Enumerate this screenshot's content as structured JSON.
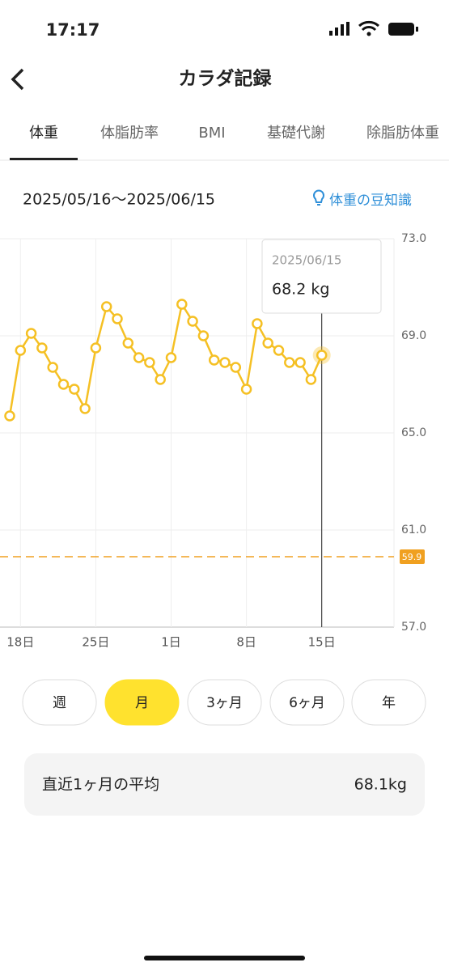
{
  "status_bar": {
    "time": "17:17"
  },
  "header": {
    "title": "カラダ記録"
  },
  "tabs": [
    "体重",
    "体脂肪率",
    "BMI",
    "基礎代謝",
    "除脂肪体重"
  ],
  "date_range": "2025/05/16〜2025/06/15",
  "tip_link": "体重の豆知識",
  "chart_data": {
    "type": "line",
    "categories": [
      null,
      "18日",
      null,
      null,
      null,
      null,
      null,
      null,
      "25日",
      null,
      null,
      null,
      null,
      null,
      null,
      "1日",
      null,
      null,
      null,
      null,
      null,
      null,
      "8日",
      null,
      null,
      null,
      null,
      null,
      null,
      "15日"
    ],
    "series": [
      {
        "name": "体重",
        "color": "#f5c024",
        "values": [
          65.7,
          68.4,
          69.1,
          68.5,
          67.7,
          67.0,
          66.8,
          66.0,
          68.5,
          70.2,
          69.7,
          68.7,
          68.1,
          67.9,
          67.2,
          68.1,
          70.3,
          69.6,
          69.0,
          68.0,
          67.9,
          67.7,
          66.8,
          69.5,
          68.7,
          68.4,
          67.9,
          67.9,
          67.2,
          68.2
        ]
      }
    ],
    "ylim": [
      57,
      73
    ],
    "yticks": [
      {
        "value": 73,
        "label": "73.0"
      },
      {
        "value": 69,
        "label": "69.0"
      },
      {
        "value": 65,
        "label": "65.0"
      },
      {
        "value": 61,
        "label": "61.0"
      },
      {
        "value": 57,
        "label": "57.0"
      }
    ],
    "reference_line": 59.9,
    "grid": true,
    "tooltip": {
      "date": "2025/06/15",
      "value": "68.2 kg"
    }
  },
  "periods": [
    "週",
    "月",
    "3ヶ月",
    "6ヶ月",
    "年"
  ],
  "average": {
    "label": "直近1ヶ月の平均",
    "value": "68.1kg"
  }
}
